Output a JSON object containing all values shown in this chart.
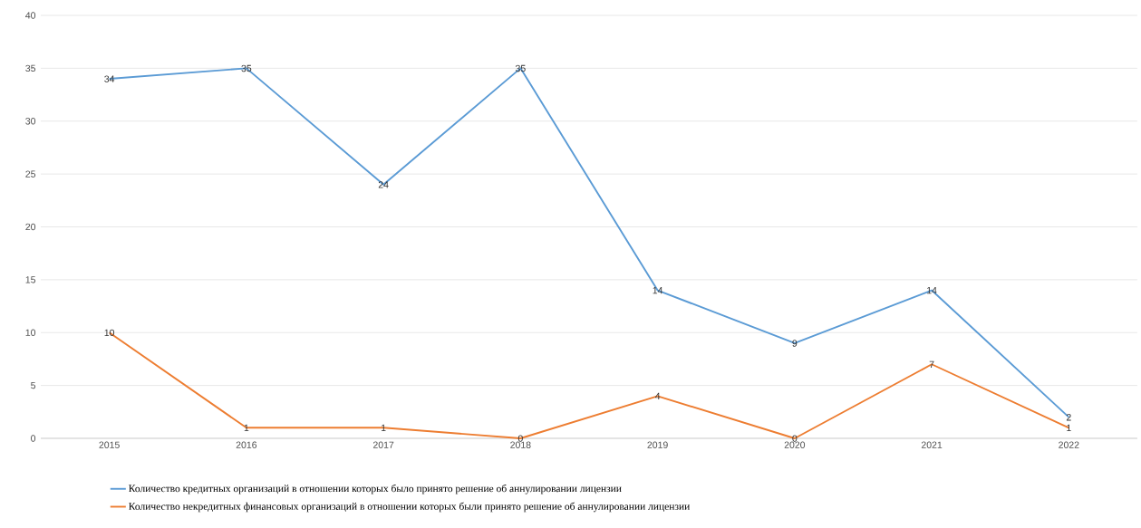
{
  "chart_data": {
    "type": "line",
    "categories": [
      "2015",
      "2016",
      "2017",
      "2018",
      "2019",
      "2020",
      "2021",
      "2022"
    ],
    "series": [
      {
        "name": "Количество кредитных организаций в отношении которых было принято решение об аннулировании лицензии",
        "color": "#5b9bd5",
        "values": [
          34,
          35,
          24,
          35,
          14,
          9,
          14,
          2
        ]
      },
      {
        "name": "Количество некредитных финансовых организаций в отношении которых были принято решение об аннулировании лицензии",
        "color": "#ed7d31",
        "values": [
          10,
          1,
          1,
          0,
          4,
          0,
          7,
          1
        ]
      }
    ],
    "ylim": [
      0,
      40
    ],
    "yticks": [
      0,
      5,
      10,
      15,
      20,
      25,
      30,
      35,
      40
    ],
    "grid": "y",
    "legend": "bottom",
    "data_labels": true,
    "line_style": "solid"
  }
}
